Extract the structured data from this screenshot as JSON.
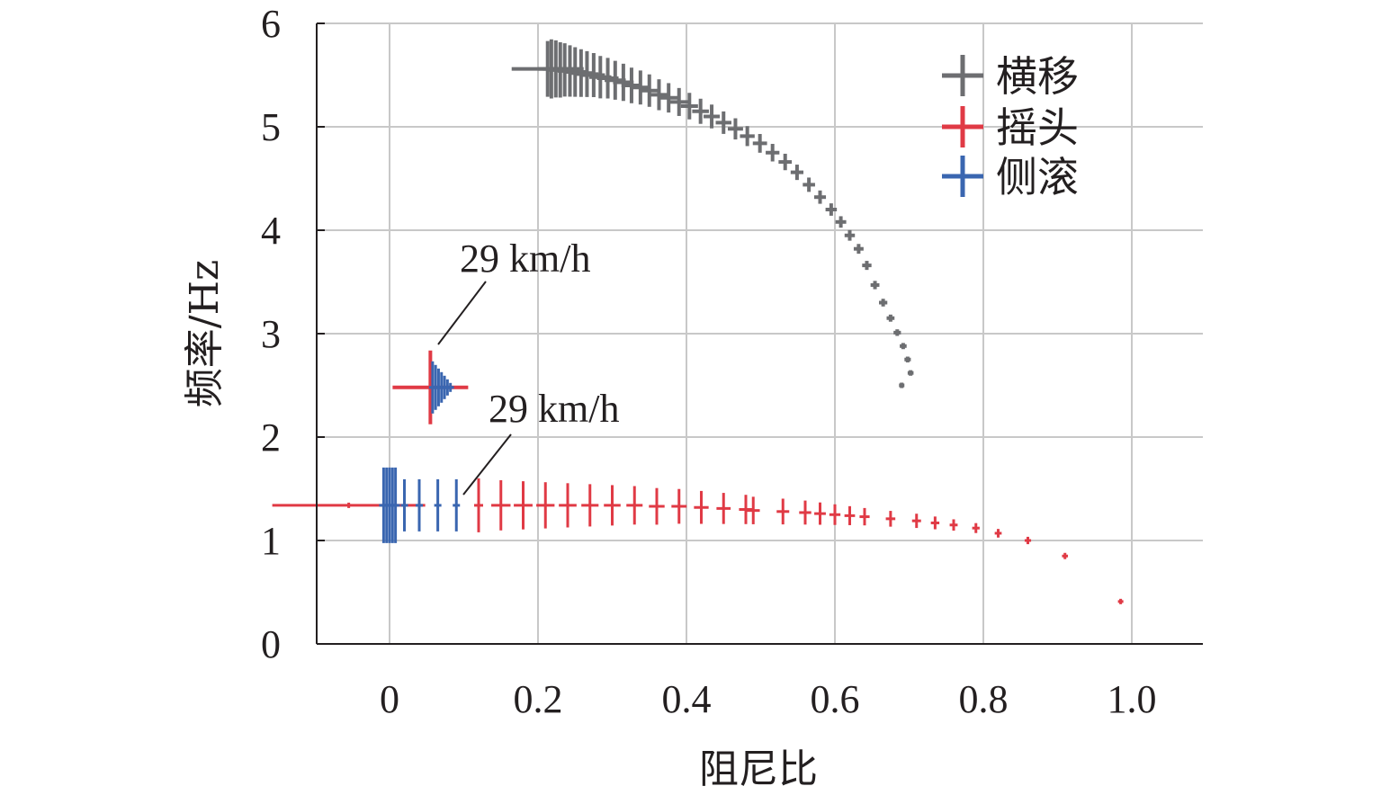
{
  "chart_data": {
    "type": "scatter",
    "title": "",
    "xlabel": "阻尼比",
    "ylabel": "频率/Hz",
    "xlim": [
      -0.1,
      1.1
    ],
    "ylim": [
      0,
      6
    ],
    "xticks": [
      0,
      0.2,
      0.4,
      0.6,
      0.8,
      1.0
    ],
    "xtick_labels": [
      "0",
      "0.2",
      "0.4",
      "0.6",
      "0.8",
      "1.0"
    ],
    "yticks": [
      0,
      1,
      2,
      3,
      4,
      5,
      6
    ],
    "ytick_labels": [
      "0",
      "1",
      "2",
      "3",
      "4",
      "5",
      "6"
    ],
    "grid": true,
    "legend_position": "top-right",
    "marker": "plus",
    "series": [
      {
        "name": "横移",
        "color": "#6d6e71",
        "points": [
          [
            0.213,
            5.56
          ],
          [
            0.218,
            5.56
          ],
          [
            0.224,
            5.56
          ],
          [
            0.23,
            5.55
          ],
          [
            0.236,
            5.55
          ],
          [
            0.243,
            5.54
          ],
          [
            0.25,
            5.53
          ],
          [
            0.258,
            5.52
          ],
          [
            0.266,
            5.51
          ],
          [
            0.275,
            5.5
          ],
          [
            0.284,
            5.48
          ],
          [
            0.294,
            5.47
          ],
          [
            0.304,
            5.45
          ],
          [
            0.315,
            5.43
          ],
          [
            0.326,
            5.4
          ],
          [
            0.338,
            5.38
          ],
          [
            0.35,
            5.35
          ],
          [
            0.363,
            5.31
          ],
          [
            0.376,
            5.28
          ],
          [
            0.39,
            5.24
          ],
          [
            0.404,
            5.2
          ],
          [
            0.419,
            5.15
          ],
          [
            0.434,
            5.1
          ],
          [
            0.45,
            5.04
          ],
          [
            0.466,
            4.98
          ],
          [
            0.482,
            4.91
          ],
          [
            0.499,
            4.84
          ],
          [
            0.516,
            4.75
          ],
          [
            0.533,
            4.66
          ],
          [
            0.549,
            4.56
          ],
          [
            0.565,
            4.44
          ],
          [
            0.58,
            4.32
          ],
          [
            0.595,
            4.2
          ],
          [
            0.608,
            4.08
          ],
          [
            0.62,
            3.95
          ],
          [
            0.632,
            3.82
          ],
          [
            0.643,
            3.66
          ],
          [
            0.654,
            3.47
          ],
          [
            0.665,
            3.3
          ],
          [
            0.675,
            3.15
          ],
          [
            0.684,
            3.01
          ],
          [
            0.692,
            2.88
          ],
          [
            0.698,
            2.75
          ],
          [
            0.702,
            2.62
          ],
          [
            0.69,
            2.5
          ]
        ]
      },
      {
        "name": "摇头",
        "color": "#e03a45",
        "points": [
          [
            -0.055,
            1.34
          ],
          [
            0.12,
            1.34
          ],
          [
            0.15,
            1.34
          ],
          [
            0.18,
            1.34
          ],
          [
            0.21,
            1.34
          ],
          [
            0.24,
            1.34
          ],
          [
            0.27,
            1.34
          ],
          [
            0.3,
            1.34
          ],
          [
            0.33,
            1.34
          ],
          [
            0.36,
            1.33
          ],
          [
            0.39,
            1.33
          ],
          [
            0.42,
            1.32
          ],
          [
            0.45,
            1.31
          ],
          [
            0.48,
            1.3
          ],
          [
            0.49,
            1.29
          ],
          [
            0.53,
            1.28
          ],
          [
            0.56,
            1.27
          ],
          [
            0.58,
            1.26
          ],
          [
            0.6,
            1.25
          ],
          [
            0.62,
            1.24
          ],
          [
            0.64,
            1.23
          ],
          [
            0.675,
            1.21
          ],
          [
            0.71,
            1.19
          ],
          [
            0.735,
            1.17
          ],
          [
            0.76,
            1.15
          ],
          [
            0.79,
            1.12
          ],
          [
            0.82,
            1.07
          ],
          [
            0.86,
            1.0
          ],
          [
            0.91,
            0.85
          ],
          [
            0.985,
            0.41
          ]
        ]
      },
      {
        "name": "侧滚",
        "color": "#3a66b0",
        "points": [
          [
            -0.008,
            1.34
          ],
          [
            -0.004,
            1.34
          ],
          [
            0.0,
            1.34
          ],
          [
            0.004,
            1.34
          ],
          [
            0.008,
            1.34
          ],
          [
            0.02,
            1.34
          ],
          [
            0.04,
            1.34
          ],
          [
            0.065,
            1.34
          ],
          [
            0.09,
            1.34
          ],
          [
            0.055,
            2.48
          ],
          [
            0.058,
            2.48
          ],
          [
            0.062,
            2.48
          ],
          [
            0.066,
            2.48
          ],
          [
            0.07,
            2.48
          ],
          [
            0.074,
            2.48
          ],
          [
            0.078,
            2.48
          ],
          [
            0.082,
            2.48
          ]
        ]
      }
    ],
    "annotations": [
      {
        "text": "29 km/h",
        "x": 0.065,
        "y": 2.83
      },
      {
        "text": "29 km/h",
        "x": 0.1,
        "y": 1.45
      }
    ]
  }
}
